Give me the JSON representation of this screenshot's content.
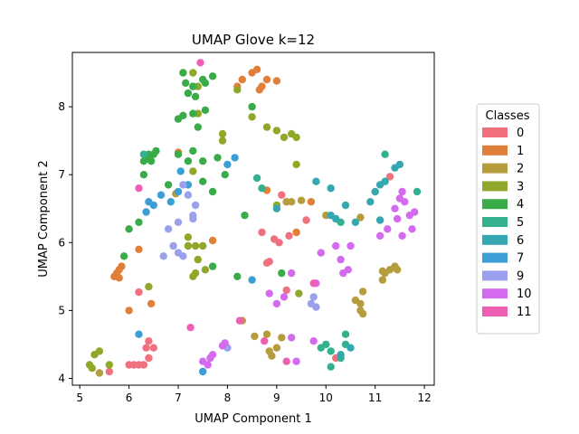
{
  "chart_data": {
    "type": "scatter",
    "title": "UMAP Glove k=12",
    "xlabel": "UMAP Component 1",
    "ylabel": "UMAP Component 2",
    "xlim": [
      4.85,
      12.2
    ],
    "ylim": [
      3.9,
      8.8
    ],
    "xticks": [
      5,
      6,
      7,
      8,
      9,
      10,
      11,
      12
    ],
    "yticks": [
      4,
      5,
      6,
      7,
      8
    ],
    "grid": false,
    "legend": {
      "title": "Classes",
      "placement": "right"
    },
    "series": [
      {
        "name": "0",
        "color": "#f0707e",
        "points": [
          [
            5.6,
            4.1
          ],
          [
            6.0,
            4.2
          ],
          [
            6.1,
            4.2
          ],
          [
            6.2,
            4.2
          ],
          [
            6.3,
            4.2
          ],
          [
            6.4,
            4.3
          ],
          [
            6.35,
            4.45
          ],
          [
            6.5,
            4.45
          ],
          [
            6.4,
            4.55
          ],
          [
            6.2,
            5.27
          ],
          [
            8.7,
            6.15
          ],
          [
            8.95,
            6.05
          ],
          [
            9.05,
            6.0
          ],
          [
            9.1,
            6.7
          ],
          [
            9.25,
            6.1
          ],
          [
            9.6,
            6.33
          ],
          [
            9.2,
            5.3
          ],
          [
            11.3,
            6.97
          ],
          [
            10.2,
            4.3
          ],
          [
            8.8,
            5.7
          ],
          [
            8.85,
            5.72
          ]
        ]
      },
      {
        "name": "1",
        "color": "#e07f3a",
        "points": [
          [
            5.7,
            5.5
          ],
          [
            5.75,
            5.55
          ],
          [
            5.8,
            5.6
          ],
          [
            5.85,
            5.65
          ],
          [
            5.8,
            5.48
          ],
          [
            6.0,
            5.0
          ],
          [
            6.45,
            5.1
          ],
          [
            6.2,
            5.9
          ],
          [
            7.0,
            7.33
          ],
          [
            7.7,
            6.03
          ],
          [
            8.2,
            8.3
          ],
          [
            8.3,
            8.4
          ],
          [
            8.5,
            8.5
          ],
          [
            8.6,
            8.55
          ],
          [
            8.7,
            8.3
          ],
          [
            8.8,
            8.4
          ],
          [
            8.65,
            8.25
          ],
          [
            9.0,
            8.38
          ],
          [
            8.8,
            6.77
          ],
          [
            9.2,
            6.6
          ],
          [
            9.4,
            6.15
          ],
          [
            9.7,
            6.6
          ]
        ]
      },
      {
        "name": "2",
        "color": "#b59c3c",
        "points": [
          [
            5.4,
            4.08
          ],
          [
            6.95,
            6.72
          ],
          [
            9.3,
            6.6
          ],
          [
            9.5,
            6.62
          ],
          [
            10.0,
            6.4
          ],
          [
            10.7,
            6.37
          ],
          [
            10.6,
            5.15
          ],
          [
            10.7,
            5.1
          ],
          [
            10.75,
            4.95
          ],
          [
            10.7,
            5.0
          ],
          [
            10.75,
            5.28
          ],
          [
            11.15,
            5.45
          ],
          [
            11.2,
            5.55
          ],
          [
            11.3,
            5.6
          ],
          [
            11.4,
            5.65
          ],
          [
            11.45,
            5.6
          ],
          [
            11.15,
            5.58
          ],
          [
            8.55,
            4.62
          ],
          [
            8.8,
            4.65
          ],
          [
            8.85,
            4.4
          ],
          [
            8.9,
            4.33
          ],
          [
            9.0,
            4.45
          ],
          [
            9.1,
            4.6
          ],
          [
            8.3,
            4.85
          ],
          [
            9.2,
            6.6
          ]
        ]
      },
      {
        "name": "3",
        "color": "#8fa82a",
        "points": [
          [
            5.2,
            4.2
          ],
          [
            5.25,
            4.15
          ],
          [
            5.3,
            4.35
          ],
          [
            5.4,
            4.4
          ],
          [
            5.6,
            4.2
          ],
          [
            6.4,
            5.35
          ],
          [
            7.2,
            6.08
          ],
          [
            7.35,
            5.95
          ],
          [
            7.3,
            5.5
          ],
          [
            7.35,
            5.55
          ],
          [
            7.4,
            5.75
          ],
          [
            7.5,
            5.95
          ],
          [
            7.55,
            5.6
          ],
          [
            7.2,
            5.95
          ],
          [
            7.3,
            8.5
          ],
          [
            7.4,
            8.3
          ],
          [
            7.3,
            7.05
          ],
          [
            7.9,
            7.6
          ],
          [
            7.9,
            7.5
          ],
          [
            8.2,
            8.25
          ],
          [
            8.5,
            7.85
          ],
          [
            8.8,
            7.7
          ],
          [
            9.0,
            7.65
          ],
          [
            9.15,
            7.55
          ],
          [
            9.3,
            7.6
          ],
          [
            9.4,
            7.55
          ],
          [
            9.4,
            7.15
          ],
          [
            9.45,
            5.25
          ],
          [
            9.0,
            6.55
          ],
          [
            7.4,
            7.9
          ]
        ]
      },
      {
        "name": "4",
        "color": "#3aab49",
        "points": [
          [
            7.1,
            8.5
          ],
          [
            7.15,
            8.35
          ],
          [
            7.2,
            8.2
          ],
          [
            7.3,
            8.3
          ],
          [
            7.35,
            8.15
          ],
          [
            7.5,
            8.4
          ],
          [
            7.55,
            8.35
          ],
          [
            7.7,
            8.45
          ],
          [
            7.0,
            7.82
          ],
          [
            7.1,
            7.87
          ],
          [
            7.3,
            7.9
          ],
          [
            7.55,
            7.95
          ],
          [
            7.4,
            7.7
          ],
          [
            7.0,
            7.3
          ],
          [
            7.2,
            7.2
          ],
          [
            7.3,
            7.35
          ],
          [
            7.5,
            7.2
          ],
          [
            7.8,
            7.25
          ],
          [
            7.5,
            6.9
          ],
          [
            7.7,
            6.75
          ],
          [
            7.95,
            7.0
          ],
          [
            6.4,
            7.3
          ],
          [
            6.5,
            7.3
          ],
          [
            6.55,
            7.35
          ],
          [
            6.45,
            7.2
          ],
          [
            6.3,
            7.2
          ],
          [
            6.4,
            7.25
          ],
          [
            6.3,
            7.0
          ],
          [
            6.8,
            6.85
          ],
          [
            6.0,
            6.2
          ],
          [
            5.9,
            5.8
          ],
          [
            6.2,
            6.3
          ],
          [
            8.5,
            8.0
          ],
          [
            9.1,
            5.55
          ],
          [
            7.7,
            5.65
          ],
          [
            8.2,
            5.5
          ],
          [
            8.35,
            6.4
          ]
        ]
      },
      {
        "name": "5",
        "color": "#33b08d",
        "points": [
          [
            6.3,
            7.3
          ],
          [
            8.6,
            6.95
          ],
          [
            8.7,
            6.8
          ],
          [
            9.9,
            4.45
          ],
          [
            10.0,
            4.5
          ],
          [
            10.1,
            4.4
          ],
          [
            10.3,
            4.3
          ],
          [
            10.4,
            4.5
          ],
          [
            10.4,
            4.65
          ],
          [
            10.1,
            4.17
          ],
          [
            10.3,
            6.3
          ],
          [
            11.2,
            7.3
          ],
          [
            11.85,
            6.75
          ]
        ]
      },
      {
        "name": "6",
        "color": "#34a7b0",
        "points": [
          [
            9.8,
            6.9
          ],
          [
            10.1,
            6.8
          ],
          [
            10.1,
            6.4
          ],
          [
            10.2,
            6.35
          ],
          [
            10.4,
            6.55
          ],
          [
            10.6,
            6.3
          ],
          [
            10.9,
            6.6
          ],
          [
            11.0,
            6.75
          ],
          [
            11.1,
            6.85
          ],
          [
            11.2,
            6.9
          ],
          [
            11.4,
            7.1
          ],
          [
            11.5,
            7.15
          ],
          [
            11.1,
            6.33
          ],
          [
            9.0,
            6.5
          ],
          [
            10.3,
            4.35
          ],
          [
            10.5,
            4.45
          ]
        ]
      },
      {
        "name": "7",
        "color": "#3b9fd6",
        "points": [
          [
            6.2,
            4.65
          ],
          [
            6.35,
            6.45
          ],
          [
            6.4,
            6.6
          ],
          [
            6.5,
            6.55
          ],
          [
            6.65,
            6.7
          ],
          [
            6.85,
            6.6
          ],
          [
            7.0,
            6.75
          ],
          [
            7.05,
            7.05
          ],
          [
            7.2,
            6.85
          ],
          [
            8.0,
            7.15
          ],
          [
            8.15,
            7.25
          ],
          [
            8.5,
            5.45
          ],
          [
            7.5,
            4.1
          ]
        ]
      },
      {
        "name": "9",
        "color": "#9aa0ec",
        "points": [
          [
            6.7,
            5.8
          ],
          [
            6.8,
            6.2
          ],
          [
            6.9,
            5.95
          ],
          [
            7.0,
            6.3
          ],
          [
            7.0,
            5.85
          ],
          [
            7.1,
            5.8
          ],
          [
            7.2,
            6.7
          ],
          [
            7.3,
            6.4
          ],
          [
            7.35,
            6.55
          ],
          [
            7.3,
            6.35
          ],
          [
            7.1,
            6.85
          ],
          [
            9.7,
            5.1
          ],
          [
            9.75,
            5.2
          ],
          [
            9.8,
            5.05
          ],
          [
            8.0,
            4.45
          ]
        ]
      },
      {
        "name": "10",
        "color": "#d46bee",
        "points": [
          [
            9.8,
            5.4
          ],
          [
            9.9,
            5.85
          ],
          [
            10.2,
            5.95
          ],
          [
            10.3,
            5.75
          ],
          [
            10.35,
            5.55
          ],
          [
            10.45,
            5.6
          ],
          [
            10.5,
            5.95
          ],
          [
            11.1,
            6.1
          ],
          [
            11.25,
            6.2
          ],
          [
            11.4,
            6.5
          ],
          [
            11.45,
            6.35
          ],
          [
            11.5,
            6.65
          ],
          [
            11.6,
            6.6
          ],
          [
            11.7,
            6.4
          ],
          [
            11.75,
            6.2
          ],
          [
            11.8,
            6.45
          ],
          [
            11.55,
            6.1
          ],
          [
            9.0,
            5.1
          ],
          [
            9.15,
            5.2
          ],
          [
            9.3,
            5.55
          ],
          [
            9.3,
            4.6
          ],
          [
            9.4,
            4.25
          ],
          [
            9.75,
            4.55
          ],
          [
            8.85,
            5.25
          ],
          [
            7.6,
            4.2
          ],
          [
            7.65,
            4.3
          ],
          [
            7.7,
            4.35
          ],
          [
            7.9,
            4.48
          ],
          [
            7.95,
            4.52
          ],
          [
            7.5,
            4.25
          ],
          [
            11.55,
            6.75
          ]
        ]
      },
      {
        "name": "11",
        "color": "#ee5fb4",
        "points": [
          [
            6.2,
            6.8
          ],
          [
            7.45,
            8.65
          ],
          [
            7.25,
            4.75
          ],
          [
            8.25,
            4.85
          ],
          [
            8.75,
            4.55
          ],
          [
            9.2,
            4.25
          ],
          [
            9.75,
            5.4
          ]
        ]
      }
    ]
  }
}
